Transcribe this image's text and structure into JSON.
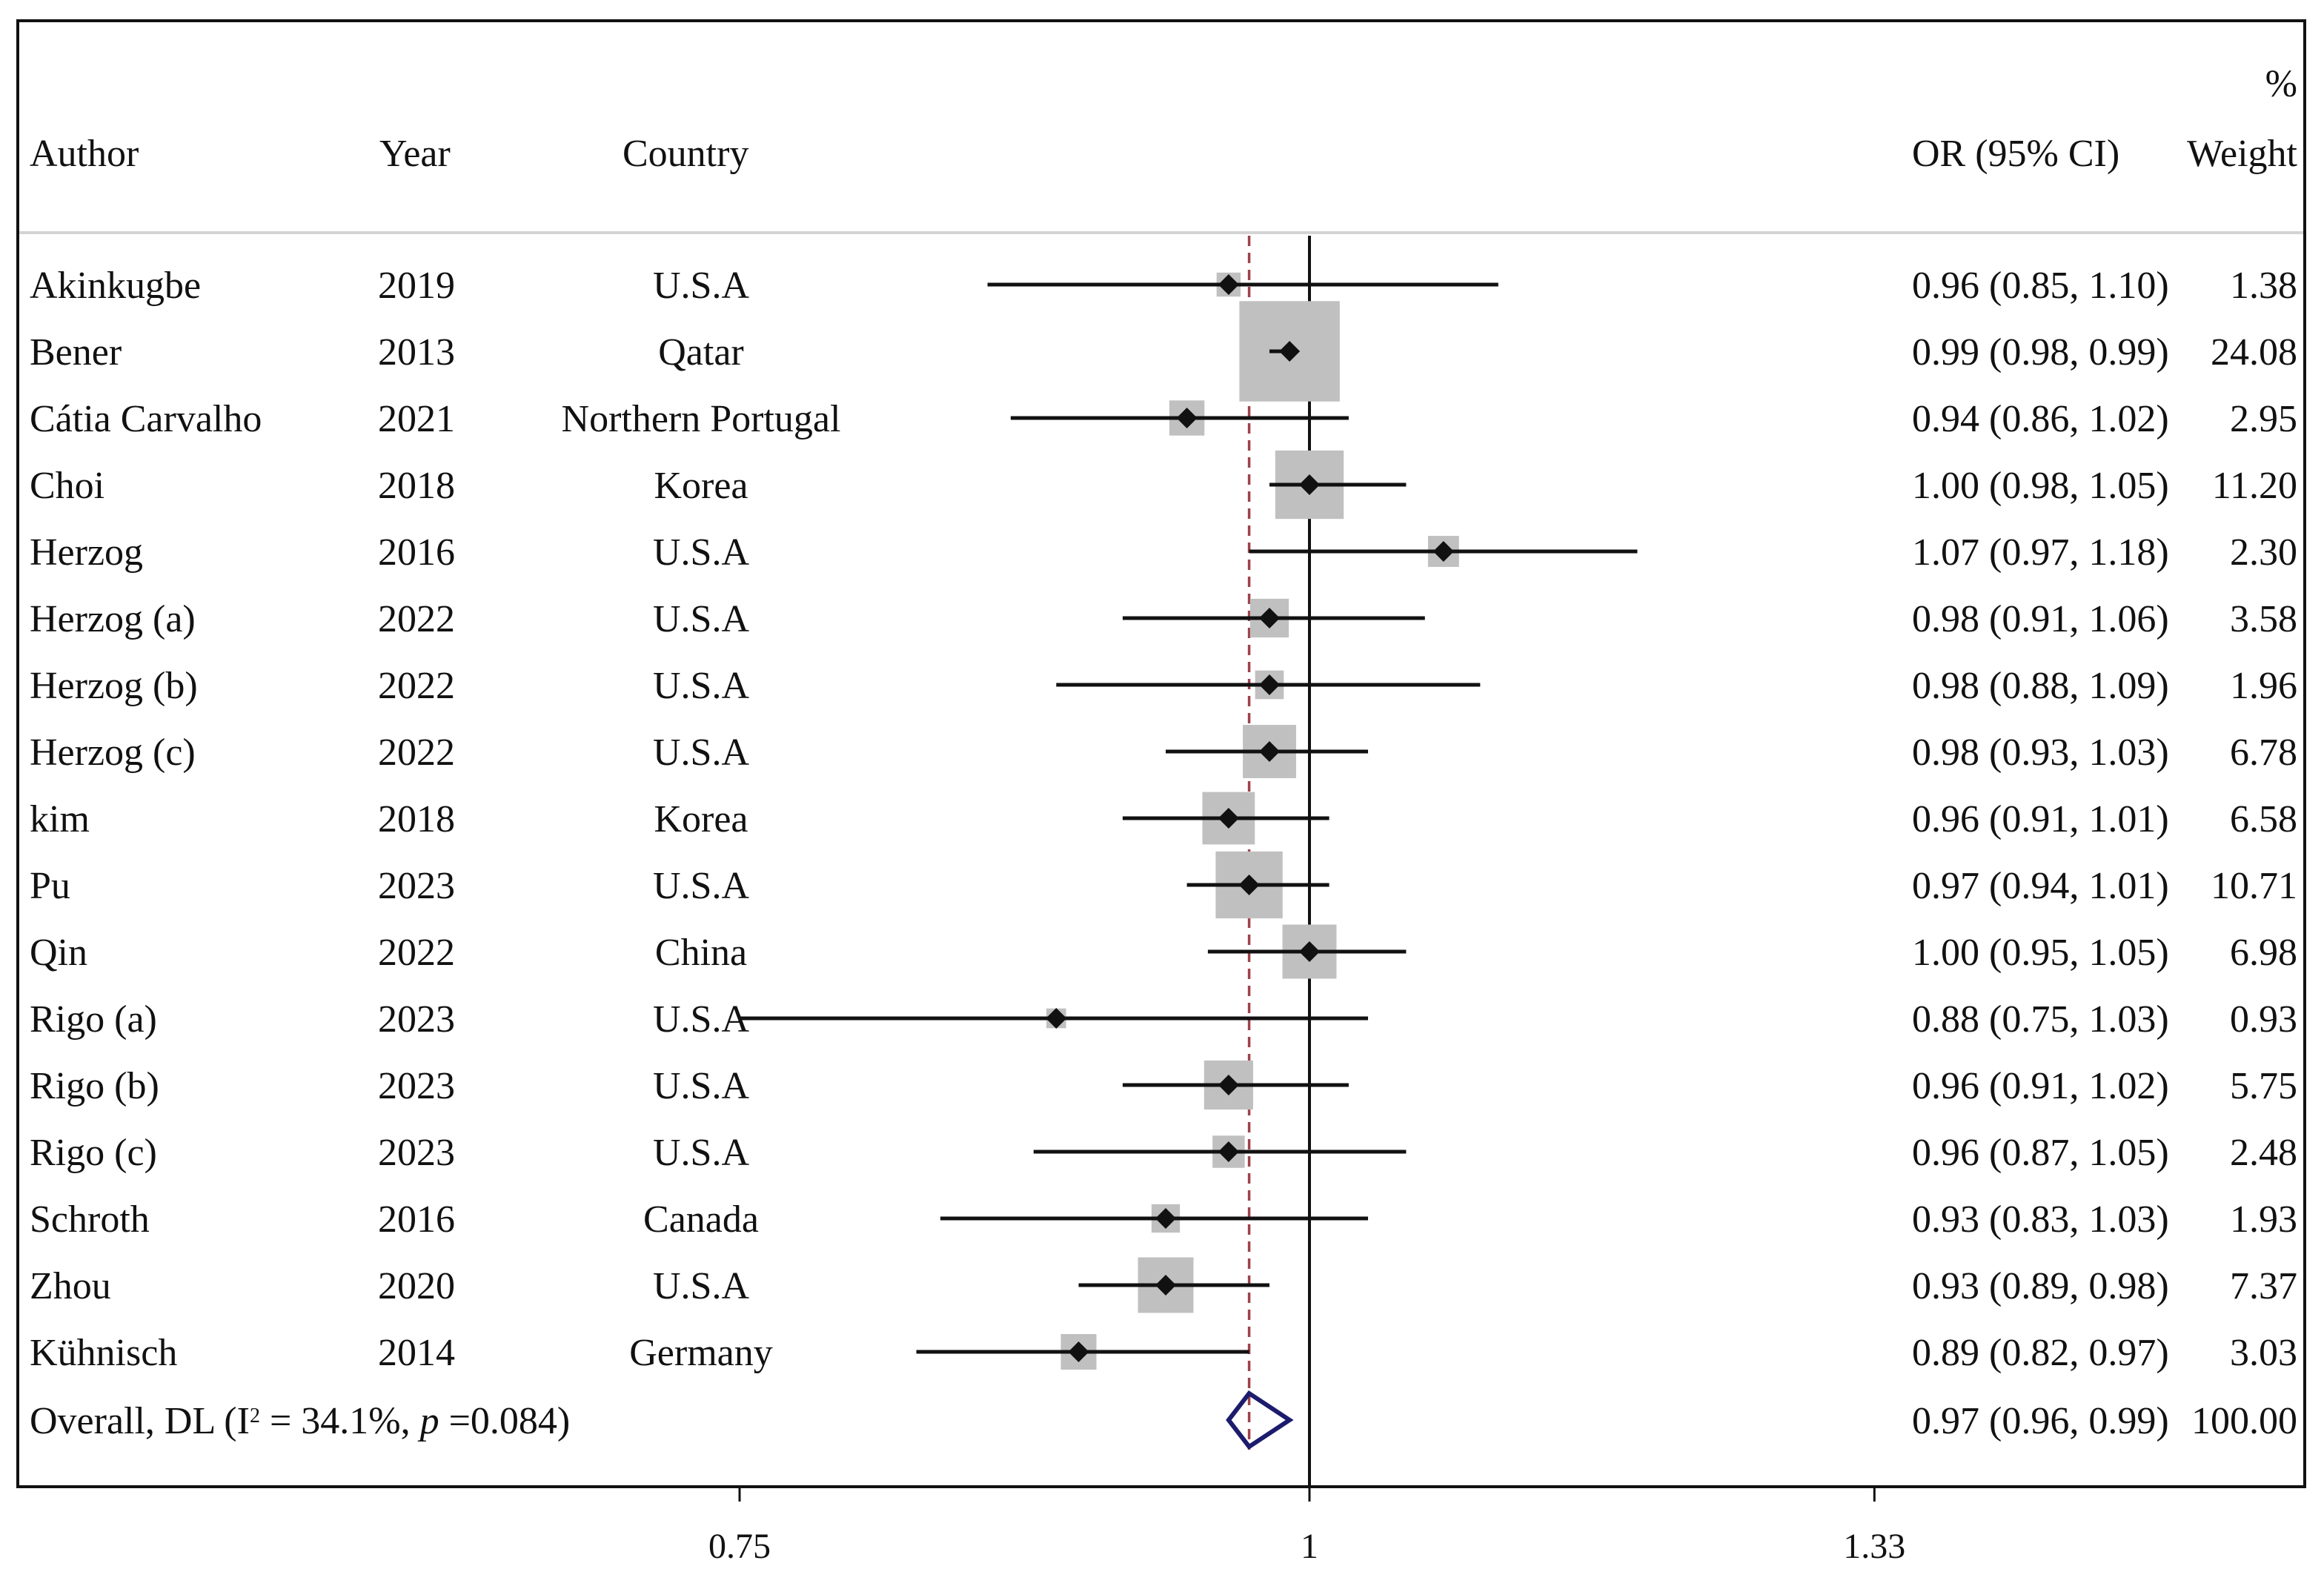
{
  "chart_data": {
    "type": "forest",
    "scale": "log",
    "xlim": [
      0.75,
      1.33
    ],
    "ticks": [
      0.75,
      1,
      1.33
    ],
    "tick_labels": [
      "0.75",
      "1",
      "1.33"
    ],
    "null_value": 1,
    "headers": {
      "author": "Author",
      "year": "Year",
      "country": "Country",
      "or": "OR (95% CI)",
      "weight_pct": "%",
      "weight": "Weight"
    },
    "studies": [
      {
        "author": "Akinkugbe",
        "year": "2019",
        "country": "U.S.A",
        "or": 0.96,
        "lo": 0.85,
        "hi": 1.1,
        "or_text": "0.96 (0.85, 1.10)",
        "weight": 1.38,
        "weight_text": "1.38"
      },
      {
        "author": "Bener",
        "year": "2013",
        "country": "Qatar",
        "or": 0.99,
        "lo": 0.98,
        "hi": 0.99,
        "or_text": "0.99 (0.98, 0.99)",
        "weight": 24.08,
        "weight_text": "24.08"
      },
      {
        "author": "Cátia Carvalho",
        "year": "2021",
        "country": "Northern Portugal",
        "or": 0.94,
        "lo": 0.86,
        "hi": 1.02,
        "or_text": "0.94 (0.86, 1.02)",
        "weight": 2.95,
        "weight_text": "2.95"
      },
      {
        "author": "Choi",
        "year": "2018",
        "country": "Korea",
        "or": 1.0,
        "lo": 0.98,
        "hi": 1.05,
        "or_text": "1.00 (0.98, 1.05)",
        "weight": 11.2,
        "weight_text": "11.20"
      },
      {
        "author": "Herzog",
        "year": "2016",
        "country": "U.S.A",
        "or": 1.07,
        "lo": 0.97,
        "hi": 1.18,
        "or_text": "1.07 (0.97, 1.18)",
        "weight": 2.3,
        "weight_text": "2.30"
      },
      {
        "author": "Herzog (a)",
        "year": "2022",
        "country": "U.S.A",
        "or": 0.98,
        "lo": 0.91,
        "hi": 1.06,
        "or_text": "0.98 (0.91, 1.06)",
        "weight": 3.58,
        "weight_text": "3.58"
      },
      {
        "author": "Herzog (b)",
        "year": "2022",
        "country": "U.S.A",
        "or": 0.98,
        "lo": 0.88,
        "hi": 1.09,
        "or_text": "0.98 (0.88, 1.09)",
        "weight": 1.96,
        "weight_text": "1.96"
      },
      {
        "author": "Herzog (c)",
        "year": "2022",
        "country": "U.S.A",
        "or": 0.98,
        "lo": 0.93,
        "hi": 1.03,
        "or_text": "0.98 (0.93, 1.03)",
        "weight": 6.78,
        "weight_text": "6.78"
      },
      {
        "author": "kim",
        "year": "2018",
        "country": "Korea",
        "or": 0.96,
        "lo": 0.91,
        "hi": 1.01,
        "or_text": "0.96 (0.91, 1.01)",
        "weight": 6.58,
        "weight_text": "6.58"
      },
      {
        "author": "Pu",
        "year": "2023",
        "country": "U.S.A",
        "or": 0.97,
        "lo": 0.94,
        "hi": 1.01,
        "or_text": "0.97 (0.94, 1.01)",
        "weight": 10.71,
        "weight_text": "10.71"
      },
      {
        "author": "Qin",
        "year": "2022",
        "country": "China",
        "or": 1.0,
        "lo": 0.95,
        "hi": 1.05,
        "or_text": "1.00 (0.95, 1.05)",
        "weight": 6.98,
        "weight_text": "6.98"
      },
      {
        "author": "Rigo (a)",
        "year": "2023",
        "country": "U.S.A",
        "or": 0.88,
        "lo": 0.75,
        "hi": 1.03,
        "or_text": "0.88 (0.75, 1.03)",
        "weight": 0.93,
        "weight_text": "0.93"
      },
      {
        "author": "Rigo (b)",
        "year": "2023",
        "country": "U.S.A",
        "or": 0.96,
        "lo": 0.91,
        "hi": 1.02,
        "or_text": "0.96 (0.91, 1.02)",
        "weight": 5.75,
        "weight_text": "5.75"
      },
      {
        "author": "Rigo (c)",
        "year": "2023",
        "country": "U.S.A",
        "or": 0.96,
        "lo": 0.87,
        "hi": 1.05,
        "or_text": "0.96 (0.87, 1.05)",
        "weight": 2.48,
        "weight_text": "2.48"
      },
      {
        "author": "Schroth",
        "year": "2016",
        "country": "Canada",
        "or": 0.93,
        "lo": 0.83,
        "hi": 1.03,
        "or_text": "0.93 (0.83, 1.03)",
        "weight": 1.93,
        "weight_text": "1.93"
      },
      {
        "author": "Zhou",
        "year": "2020",
        "country": "U.S.A",
        "or": 0.93,
        "lo": 0.89,
        "hi": 0.98,
        "or_text": "0.93 (0.89, 0.98)",
        "weight": 7.37,
        "weight_text": "7.37"
      },
      {
        "author": "Kühnisch",
        "year": "2014",
        "country": "Germany",
        "or": 0.89,
        "lo": 0.82,
        "hi": 0.97,
        "or_text": "0.89 (0.82, 0.97)",
        "weight": 3.03,
        "weight_text": "3.03"
      }
    ],
    "overall": {
      "label_main": "Overall, DL (I",
      "label_sup": "2",
      "label_mid": " = 34.1%,  ",
      "label_p": "p",
      "label_end": " =0.084)",
      "or": 0.97,
      "lo": 0.96,
      "hi": 0.99,
      "or_text": "0.97 (0.96, 0.99)",
      "weight_text": "100.00"
    },
    "colors": {
      "ink": "#111111",
      "box": "#c0c0c0",
      "overall_line": "#a0404a",
      "diamond": "#1c1c6e",
      "header_rule": "#d3d3d3"
    }
  }
}
